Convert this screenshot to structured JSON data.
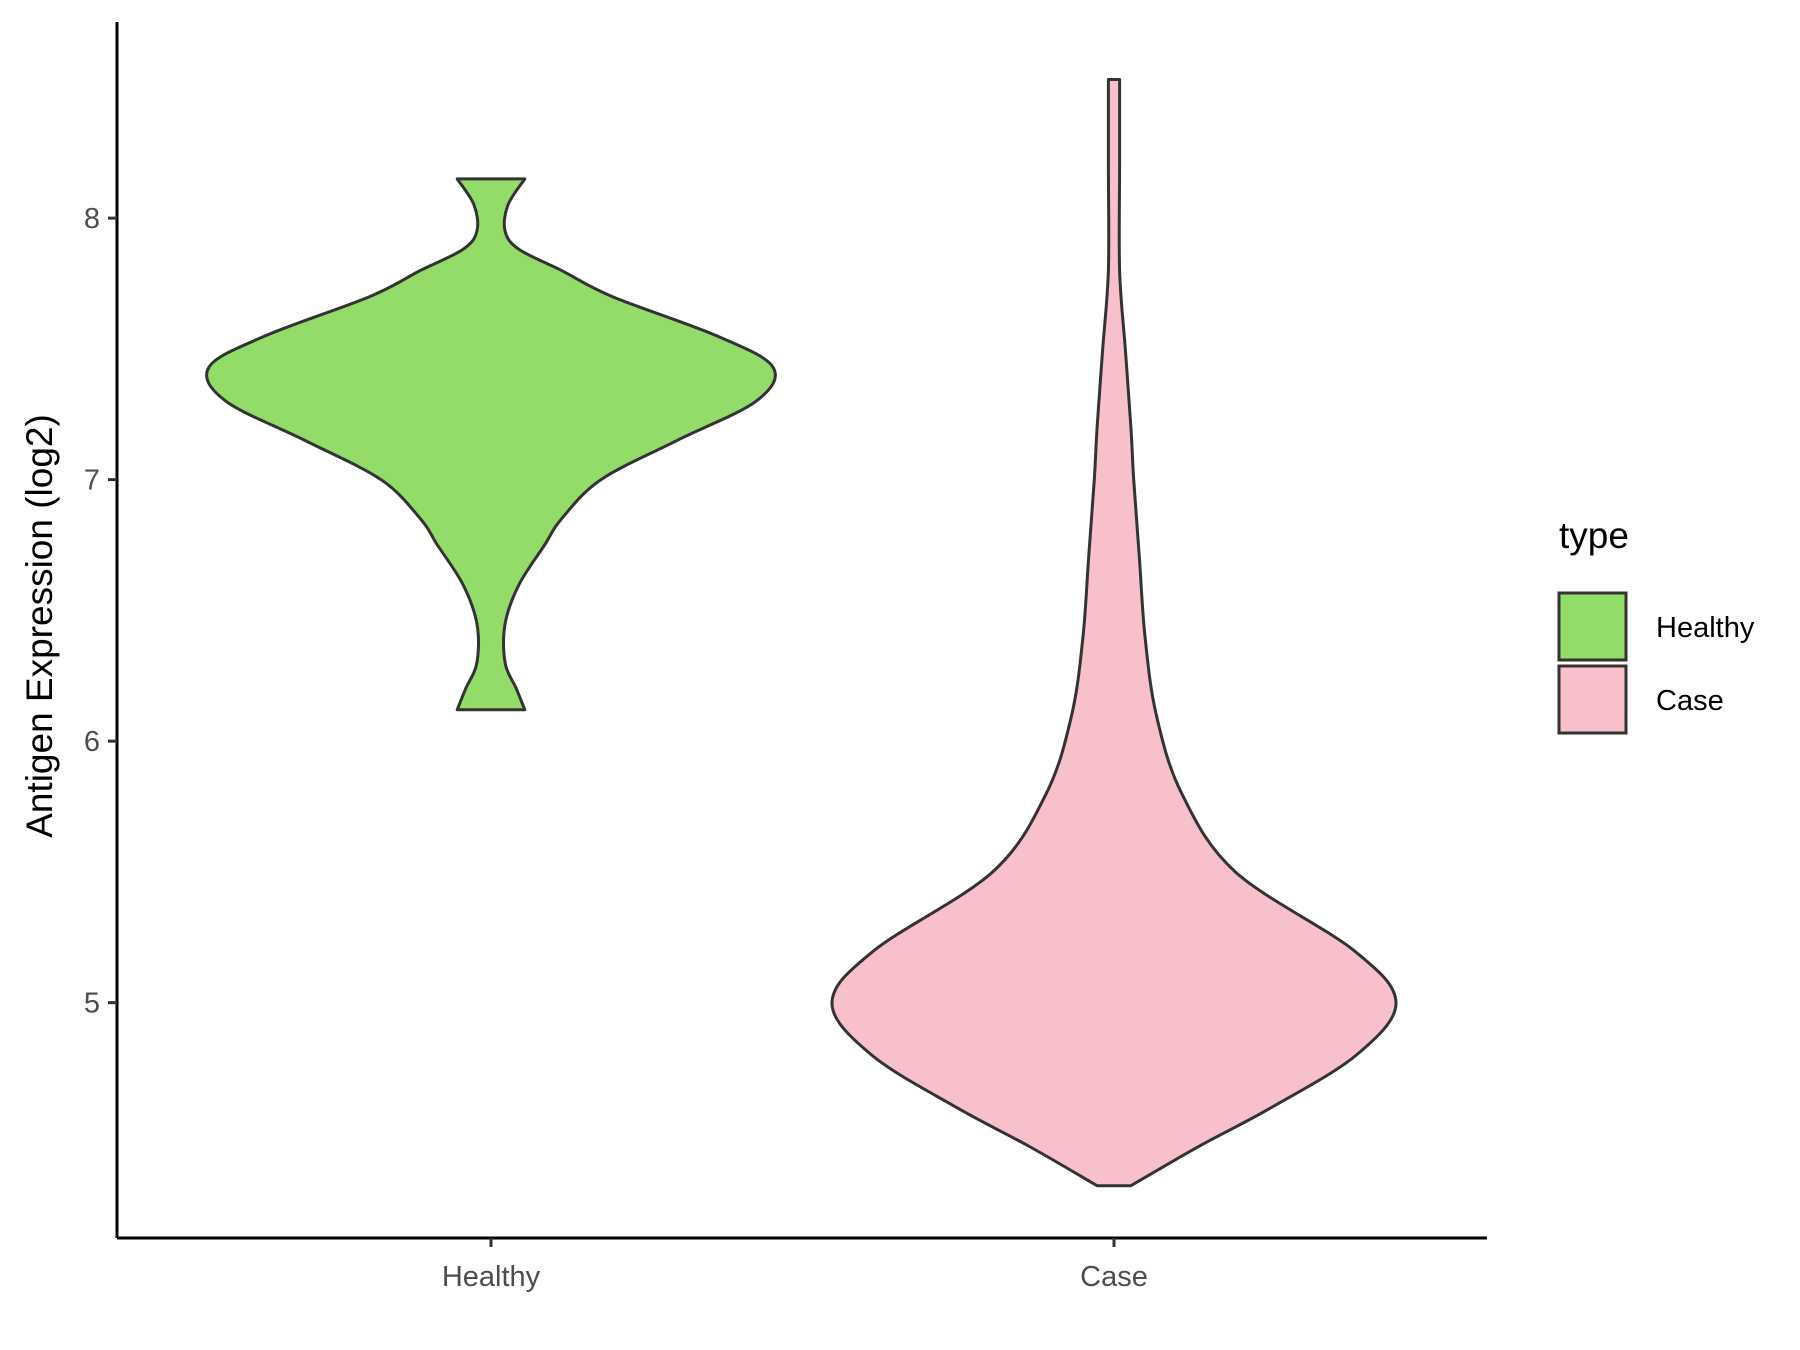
{
  "chart_data": {
    "type": "violin",
    "ylabel": "Antigen Expression (log2)",
    "xlabel": "",
    "categories": [
      "Healthy",
      "Case"
    ],
    "ylim": [
      4.1,
      8.75
    ],
    "yticks": [
      5,
      6,
      7,
      8
    ],
    "y_tick_labels": [
      "5",
      "6",
      "7",
      "8"
    ],
    "grid": false,
    "legend": {
      "title": "type",
      "position": "right",
      "entries": [
        {
          "label": "Healthy",
          "color": "#93DC6A"
        },
        {
          "label": "Case",
          "color": "#F7C0CB"
        }
      ]
    },
    "series": [
      {
        "name": "Healthy",
        "color": "#93DC6A",
        "y_min": 6.12,
        "y_max": 8.15,
        "density": [
          [
            6.12,
            0.12
          ],
          [
            6.2,
            0.09
          ],
          [
            6.3,
            0.05
          ],
          [
            6.45,
            0.05
          ],
          [
            6.6,
            0.1
          ],
          [
            6.75,
            0.19
          ],
          [
            6.85,
            0.25
          ],
          [
            7.0,
            0.39
          ],
          [
            7.15,
            0.66
          ],
          [
            7.3,
            0.94
          ],
          [
            7.43,
            1.0
          ],
          [
            7.55,
            0.8
          ],
          [
            7.7,
            0.43
          ],
          [
            7.8,
            0.25
          ],
          [
            7.88,
            0.1
          ],
          [
            7.95,
            0.05
          ],
          [
            8.05,
            0.06
          ],
          [
            8.15,
            0.12
          ]
        ]
      },
      {
        "name": "Case",
        "color": "#F7C0CB",
        "y_min": 4.3,
        "y_max": 8.53,
        "density": [
          [
            4.3,
            0.06
          ],
          [
            4.45,
            0.3
          ],
          [
            4.6,
            0.56
          ],
          [
            4.8,
            0.86
          ],
          [
            5.0,
            1.0
          ],
          [
            5.2,
            0.85
          ],
          [
            5.5,
            0.43
          ],
          [
            5.8,
            0.24
          ],
          [
            6.1,
            0.15
          ],
          [
            6.4,
            0.11
          ],
          [
            6.7,
            0.09
          ],
          [
            7.0,
            0.07
          ],
          [
            7.2,
            0.06
          ],
          [
            7.5,
            0.04
          ],
          [
            7.8,
            0.02
          ],
          [
            8.2,
            0.02
          ],
          [
            8.53,
            0.02
          ]
        ]
      }
    ]
  }
}
